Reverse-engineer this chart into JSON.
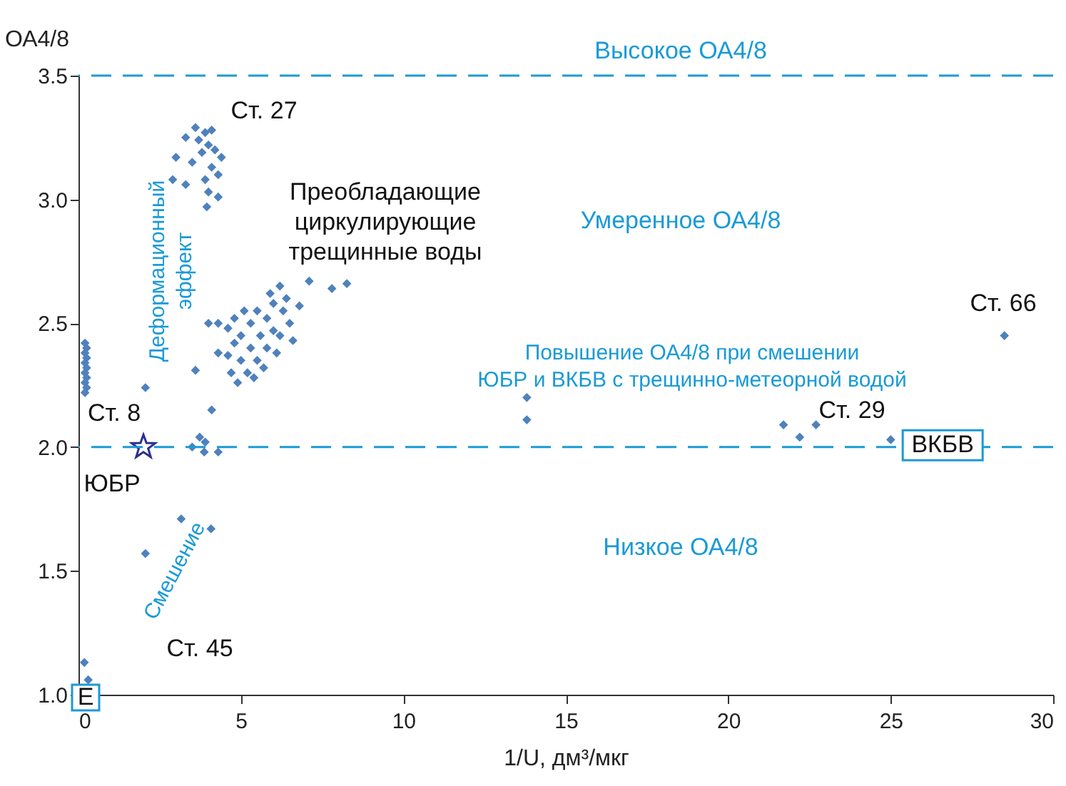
{
  "chart_data": {
    "type": "scatter",
    "xlabel": "1/U, дм³/мкг",
    "ylabel": "ОА4/8",
    "xlim": [
      0,
      30
    ],
    "xticks": [
      0,
      5,
      10,
      15,
      20,
      25,
      30
    ],
    "ylim": [
      1.0,
      3.5
    ],
    "yticks": [
      {
        "value": 1,
        "label": "1.0"
      },
      1.5,
      {
        "value": 2,
        "label": "2.0"
      },
      2.5,
      {
        "value": 3,
        "label": "3.0"
      },
      3.5
    ],
    "grid": false,
    "series": [
      {
        "color": "#4f81bd",
        "marker": "diamond",
        "x": [
          0.2,
          0.25,
          0.2,
          0.25,
          0.2,
          0.25,
          0.2,
          0.25,
          0.2,
          0.25,
          0.2,
          0.18,
          0.3,
          3.6,
          3.9,
          4.1,
          3.3,
          3.7,
          4.0,
          4.2,
          3.8,
          4.4,
          3.0,
          3.5,
          4.1,
          4.3,
          2.9,
          3.9,
          4.0,
          4.3,
          3.3,
          3.95,
          2.06,
          3.6,
          4.1,
          4.9,
          3.5,
          3.73,
          3.87,
          4.3,
          3.9,
          3.16,
          4.08,
          2.06,
          4.0,
          4.3,
          4.6,
          4.3,
          4.6,
          4.8,
          5.0,
          5.2,
          5.0,
          5.3,
          5.5,
          5.3,
          5.6,
          5.8,
          5.5,
          5.8,
          6.0,
          6.2,
          6.0,
          6.3,
          6.5,
          6.1,
          5.7,
          6.4,
          6.8,
          6.2,
          4.8,
          5.1,
          5.9,
          6.6,
          7.1,
          7.8,
          8.26,
          5.4,
          4.7,
          13.8,
          13.8,
          21.7,
          22.2,
          22.7,
          25.0,
          28.5
        ],
        "values": [
          2.42,
          2.4,
          2.38,
          2.36,
          2.34,
          2.32,
          2.3,
          2.28,
          2.26,
          2.24,
          2.22,
          1.13,
          1.06,
          3.29,
          3.27,
          3.28,
          3.25,
          3.24,
          3.22,
          3.2,
          3.19,
          3.17,
          3.17,
          3.15,
          3.13,
          3.1,
          3.08,
          3.08,
          3.03,
          3.01,
          3.06,
          2.97,
          2.24,
          2.31,
          2.15,
          2.26,
          2.0,
          2.04,
          1.98,
          1.98,
          2.02,
          1.71,
          1.67,
          1.57,
          2.5,
          2.5,
          2.48,
          2.38,
          2.37,
          2.42,
          2.35,
          2.3,
          2.45,
          2.4,
          2.35,
          2.5,
          2.45,
          2.4,
          2.55,
          2.52,
          2.47,
          2.45,
          2.58,
          2.55,
          2.5,
          2.38,
          2.32,
          2.6,
          2.57,
          2.65,
          2.52,
          2.55,
          2.62,
          2.43,
          2.67,
          2.64,
          2.66,
          2.28,
          2.3,
          2.2,
          2.11,
          2.09,
          2.04,
          2.09,
          2.03,
          2.45
        ]
      },
      {
        "name": "ЮБР",
        "color": "#2b2f8f",
        "marker": "star",
        "x": [
          2.0
        ],
        "values": [
          2.0
        ]
      }
    ],
    "ref_lines": [
      {
        "axis": "y",
        "value": 3.5,
        "color": "#1a9ad6",
        "line_style": "dashed"
      },
      {
        "axis": "y",
        "value": 2.0,
        "color": "#1a9ad6",
        "line_style": "dashed"
      }
    ],
    "annotations": [
      "Высокое ОА4/8",
      "Умеренное ОА4/8",
      "Низкое ОА4/8",
      "Повышение ОА4/8 при смешении\nЮБР и ВКБВ с трещинно-метеорной водой",
      "Преобладающие\nциркулирующие\nтрещинные воды",
      "Деформационный\nэффект",
      "Смешение",
      "Ст. 27",
      "Ст. 8",
      "Ст. 45",
      "Е",
      {
        "text": "ВКБВ",
        "x": 26.6,
        "y": 1.99
      },
      "Ст. 66",
      "Ст. 29"
    ]
  }
}
